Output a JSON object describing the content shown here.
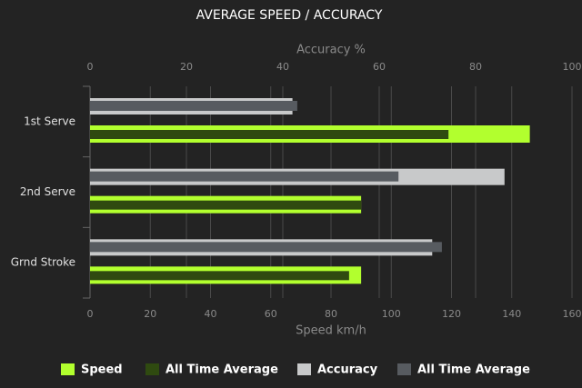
{
  "chart_data": {
    "type": "bar",
    "orientation": "horizontal",
    "title": "AVERAGE SPEED / ACCURACY",
    "categories": [
      "1st Serve",
      "2nd Serve",
      "Grnd Stroke"
    ],
    "x_label": "Speed km/h",
    "xlim": [
      0,
      160
    ],
    "xticks": [
      0,
      20,
      40,
      60,
      80,
      100,
      120,
      140,
      160
    ],
    "x2_label": "Accuracy %",
    "x2lim": [
      0,
      100
    ],
    "x2ticks": [
      0,
      20,
      40,
      60,
      80,
      100
    ],
    "grid": true,
    "legend": "bottom",
    "series": [
      {
        "name": "Speed",
        "color": "#b2ff2e",
        "values": [
          146,
          90,
          90
        ]
      },
      {
        "name": "All Time Average",
        "color": "#2f4a10",
        "values": [
          119,
          90,
          86
        ]
      },
      {
        "name": "Accuracy",
        "color": "#c8c9ca",
        "axis": "x2",
        "values": [
          42,
          86,
          71
        ]
      },
      {
        "name": "All Time Average",
        "color": "#575b60",
        "axis": "x2",
        "values": [
          43,
          64,
          73
        ]
      }
    ]
  }
}
